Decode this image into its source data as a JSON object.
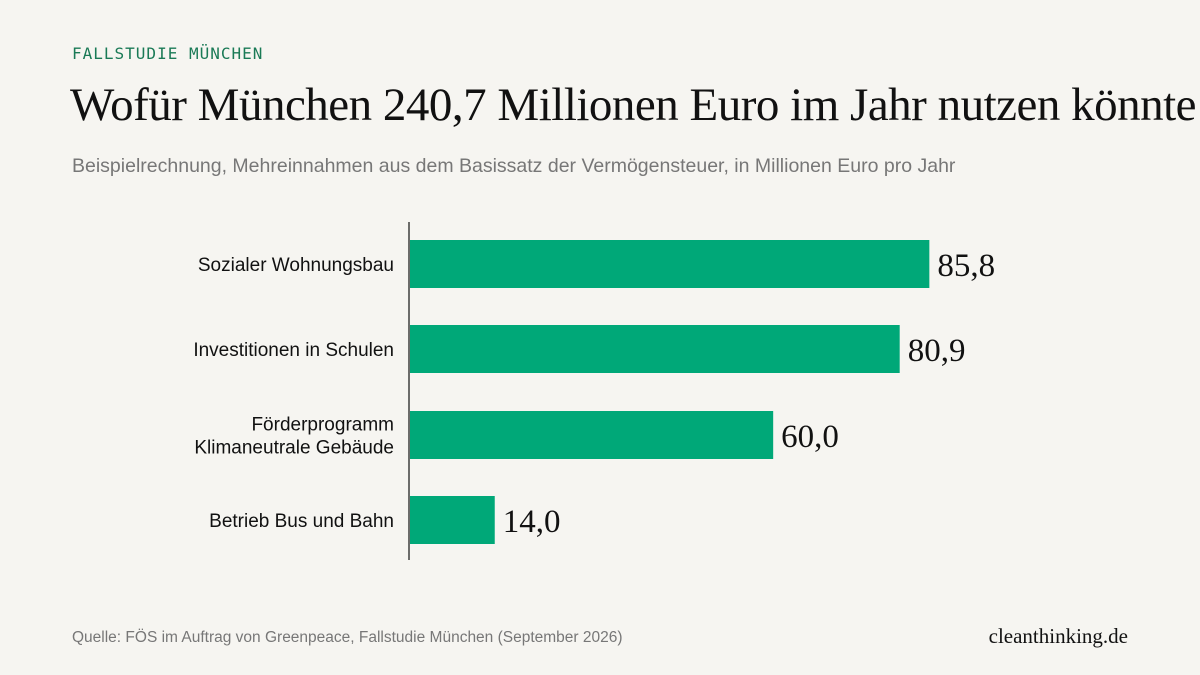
{
  "kicker": "FALLSTUDIE MÜNCHEN",
  "title": "Wofür München 240,7 Millionen Euro im Jahr nutzen könnte",
  "subtitle": "Beispielrechnung, Mehreinnahmen aus dem Basissatz der Vermögensteuer, in Millionen Euro pro Jahr",
  "source": "Quelle: FÖS im Auftrag von Greenpeace, Fallstudie München (September 2026)",
  "brand": "cleanthinking.de",
  "colors": {
    "bar": "#00a878",
    "axis": "#111111",
    "kicker": "#1a7a56",
    "background": "#f6f5f1"
  },
  "chart_data": {
    "type": "bar",
    "orientation": "horizontal",
    "categories": [
      [
        "Sozialer Wohnungsbau"
      ],
      [
        "Investitionen in Schulen"
      ],
      [
        "Förderprogramm",
        "Klimaneutrale Gebäude"
      ],
      [
        "Betrieb Bus und Bahn"
      ]
    ],
    "values": [
      85.8,
      80.9,
      60.0,
      14.0
    ],
    "value_labels": [
      "85,8",
      "80,9",
      "60,0",
      "14,0"
    ],
    "unit": "Millionen Euro pro Jahr",
    "grid": false,
    "legend": "none"
  }
}
